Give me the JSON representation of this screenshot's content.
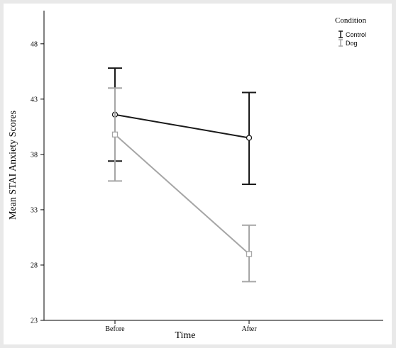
{
  "chart_data": {
    "type": "line",
    "xlabel": "Time",
    "ylabel": "Mean STAI Anxiety Scores",
    "categories": [
      "Before",
      "After"
    ],
    "ylim": [
      23,
      51
    ],
    "yticks": [
      "23",
      "28",
      "33",
      "38",
      "43",
      "48"
    ],
    "grid": false,
    "legend": {
      "title": "Condition",
      "placement": "top-right"
    },
    "series": [
      {
        "name": "Control",
        "color": "#1a1a1a",
        "marker": "circle",
        "values": [
          41.6,
          39.5
        ],
        "error_low": [
          37.4,
          35.3
        ],
        "error_high": [
          45.8,
          43.6
        ]
      },
      {
        "name": "Dog",
        "color": "#a6a6a6",
        "marker": "square",
        "values": [
          39.8,
          29.0
        ],
        "error_low": [
          35.6,
          26.5
        ],
        "error_high": [
          44.0,
          31.6
        ]
      }
    ]
  }
}
